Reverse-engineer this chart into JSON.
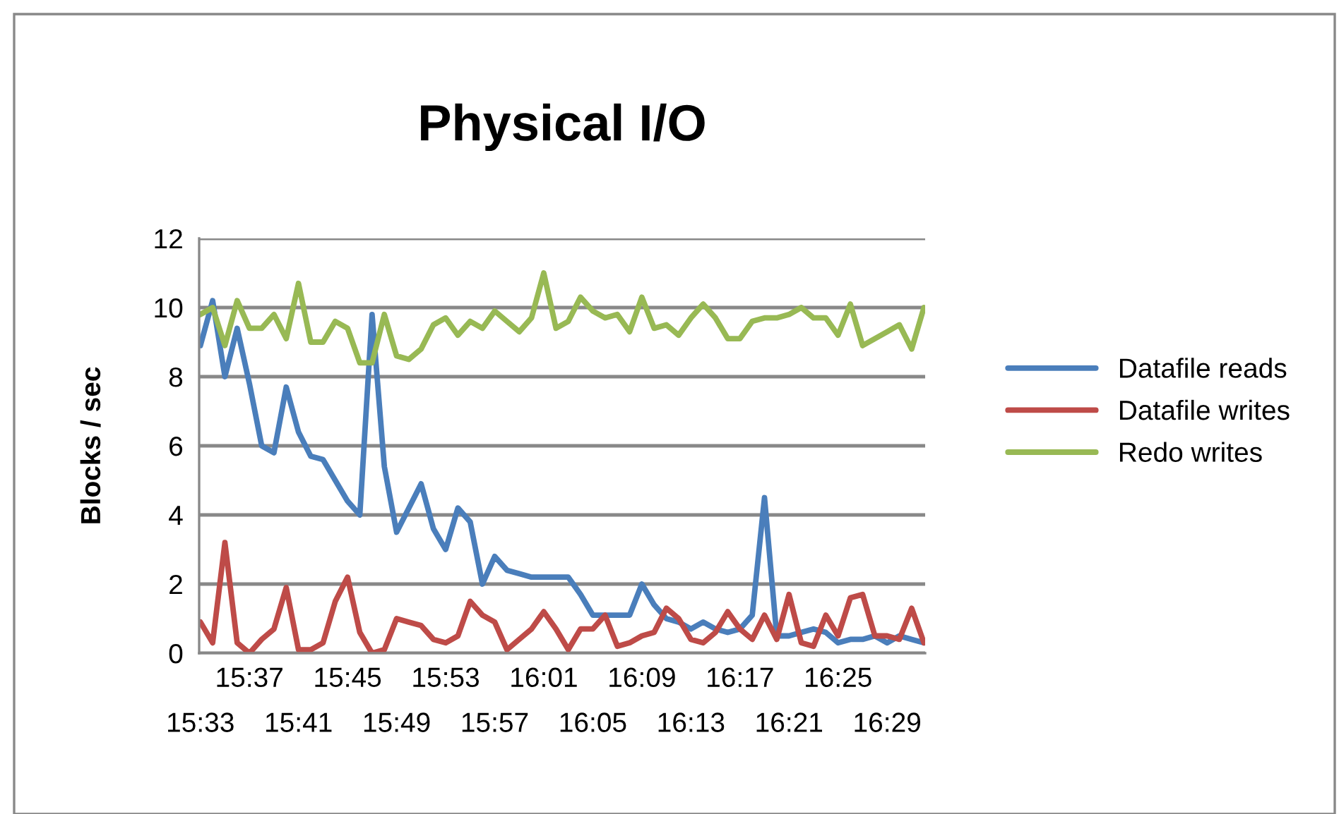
{
  "chart_data": {
    "type": "line",
    "title": "Physical I/O",
    "ylabel": "Blocks / sec",
    "categories": [
      "15:33",
      null,
      null,
      null,
      "15:37",
      null,
      null,
      null,
      "15:41",
      null,
      null,
      null,
      "15:45",
      null,
      null,
      null,
      "15:49",
      null,
      null,
      null,
      "15:53",
      null,
      null,
      null,
      "15:57",
      null,
      null,
      null,
      "16:01",
      null,
      null,
      null,
      "16:05",
      null,
      null,
      null,
      "16:09",
      null,
      null,
      null,
      "16:13",
      null,
      null,
      null,
      "16:17",
      null,
      null,
      null,
      "16:21",
      null,
      null,
      null,
      "16:25",
      null,
      null,
      null,
      "16:29",
      null,
      null,
      null
    ],
    "series": [
      {
        "name": "Datafile reads",
        "color": "#4a7ebb",
        "values": [
          8.9,
          10.2,
          8.0,
          9.4,
          7.8,
          6.0,
          5.8,
          7.7,
          6.4,
          5.7,
          5.6,
          5.0,
          4.4,
          4.0,
          9.8,
          5.4,
          3.5,
          4.2,
          4.9,
          3.6,
          3.0,
          4.2,
          3.8,
          2.0,
          2.8,
          2.4,
          2.3,
          2.2,
          2.2,
          2.2,
          2.2,
          1.7,
          1.1,
          1.1,
          1.1,
          1.1,
          2.0,
          1.4,
          1.0,
          0.9,
          0.7,
          0.9,
          0.7,
          0.6,
          0.7,
          1.1,
          4.5,
          0.5,
          0.5,
          0.6,
          0.7,
          0.6,
          0.3,
          0.4,
          0.4,
          0.5,
          0.3,
          0.5,
          0.4,
          0.3
        ]
      },
      {
        "name": "Datafile writes",
        "color": "#be4b48",
        "values": [
          0.9,
          0.3,
          3.2,
          0.3,
          0.0,
          0.4,
          0.7,
          1.9,
          0.1,
          0.1,
          0.3,
          1.5,
          2.2,
          0.6,
          0.0,
          0.1,
          1.0,
          0.9,
          0.8,
          0.4,
          0.3,
          0.5,
          1.5,
          1.1,
          0.9,
          0.1,
          0.4,
          0.7,
          1.2,
          0.7,
          0.1,
          0.7,
          0.7,
          1.1,
          0.2,
          0.3,
          0.5,
          0.6,
          1.3,
          1.0,
          0.4,
          0.3,
          0.6,
          1.2,
          0.7,
          0.4,
          1.1,
          0.4,
          1.7,
          0.3,
          0.2,
          1.1,
          0.5,
          1.6,
          1.7,
          0.5,
          0.5,
          0.4,
          1.3,
          0.3
        ]
      },
      {
        "name": "Redo writes",
        "color": "#98b954",
        "values": [
          9.8,
          10.0,
          8.9,
          10.2,
          9.4,
          9.4,
          9.8,
          9.1,
          10.7,
          9.0,
          9.0,
          9.6,
          9.4,
          8.4,
          8.4,
          9.8,
          8.6,
          8.5,
          8.8,
          9.5,
          9.7,
          9.2,
          9.6,
          9.4,
          9.9,
          9.6,
          9.3,
          9.7,
          11.0,
          9.4,
          9.6,
          10.3,
          9.9,
          9.7,
          9.8,
          9.3,
          10.3,
          9.4,
          9.5,
          9.2,
          9.7,
          10.1,
          9.7,
          9.1,
          9.1,
          9.6,
          9.7,
          9.7,
          9.8,
          10.0,
          9.7,
          9.7,
          9.2,
          10.1,
          8.9,
          9.1,
          9.3,
          9.5,
          8.8,
          10.0
        ]
      }
    ],
    "ylim": [
      0,
      12
    ],
    "yticks": [
      0,
      2,
      4,
      6,
      8,
      10,
      12
    ],
    "grid": "y",
    "legend": "right"
  }
}
